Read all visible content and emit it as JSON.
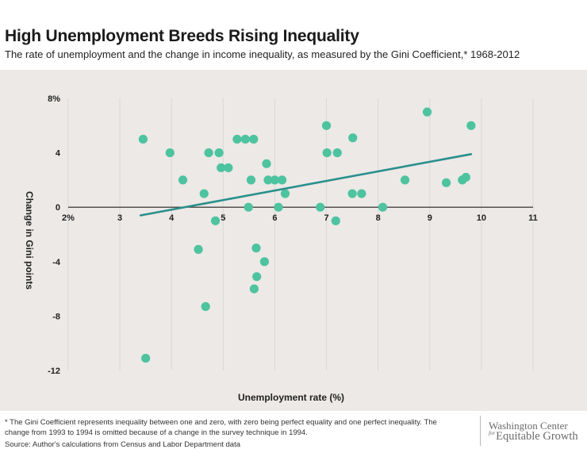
{
  "title": "High Unemployment Breeds Rising Inequality",
  "subtitle": "The rate of unemployment and the change in income inequality, as measured by the Gini Coefficient,* 1968-2012",
  "footnote": "* The Gini Coefficient represents inequality between one and zero, with zero being perfect equality and one perfect inequality. The change from 1993 to 1994 is omitted because of a change in the survey technique in 1994.",
  "source": "Source: Author's calculations from Census and Labor Department data",
  "brand": {
    "line1": "Washington Center",
    "for": "for",
    "line2": "Equitable Growth"
  },
  "colors": {
    "point": "#4dc39f",
    "trend": "#2a8f8c",
    "background": "#ece9e6",
    "grid": "#d9d9d9"
  },
  "chart_data": {
    "type": "scatter",
    "xlabel": "Unemployment rate (%)",
    "ylabel": "Change in Gini points",
    "xlim": [
      2,
      11
    ],
    "ylim": [
      -12,
      8
    ],
    "x_ticks": [
      2,
      3,
      4,
      5,
      6,
      7,
      8,
      9,
      10,
      11
    ],
    "x_tick_labels": [
      "2%",
      "3",
      "4",
      "5",
      "6",
      "7",
      "8",
      "9",
      "10",
      "11"
    ],
    "y_ticks": [
      8,
      4,
      0,
      -4,
      -8,
      -12
    ],
    "y_tick_labels": [
      "8%",
      "4",
      "0",
      "-4",
      "-8",
      "-12"
    ],
    "grid": "vertical",
    "trendline": {
      "x": [
        3.4,
        9.8
      ],
      "y": [
        -0.6,
        3.9
      ]
    },
    "points": [
      {
        "x": 3.45,
        "y": 5.0
      },
      {
        "x": 3.5,
        "y": -11.1
      },
      {
        "x": 3.97,
        "y": 4.0
      },
      {
        "x": 4.22,
        "y": 2.0
      },
      {
        "x": 4.52,
        "y": -3.1
      },
      {
        "x": 4.63,
        "y": 1.0
      },
      {
        "x": 4.66,
        "y": -7.3
      },
      {
        "x": 4.72,
        "y": 4.0
      },
      {
        "x": 4.85,
        "y": -1.0
      },
      {
        "x": 4.92,
        "y": 4.0
      },
      {
        "x": 4.96,
        "y": 2.9
      },
      {
        "x": 5.1,
        "y": 2.9
      },
      {
        "x": 5.27,
        "y": 5.0
      },
      {
        "x": 5.43,
        "y": 5.0
      },
      {
        "x": 5.49,
        "y": 0.0
      },
      {
        "x": 5.54,
        "y": 2.0
      },
      {
        "x": 5.59,
        "y": 5.0
      },
      {
        "x": 5.6,
        "y": -6.0
      },
      {
        "x": 5.64,
        "y": -3.0
      },
      {
        "x": 5.65,
        "y": -5.1
      },
      {
        "x": 5.8,
        "y": -4.0
      },
      {
        "x": 5.84,
        "y": 3.2
      },
      {
        "x": 5.87,
        "y": 2.0
      },
      {
        "x": 6.0,
        "y": 2.0
      },
      {
        "x": 6.07,
        "y": 0.0
      },
      {
        "x": 6.14,
        "y": 2.0
      },
      {
        "x": 6.2,
        "y": 1.0
      },
      {
        "x": 6.88,
        "y": 0.0
      },
      {
        "x": 7.0,
        "y": 6.0
      },
      {
        "x": 7.01,
        "y": 4.0
      },
      {
        "x": 7.18,
        "y": -1.0
      },
      {
        "x": 7.21,
        "y": 4.0
      },
      {
        "x": 7.5,
        "y": 1.0
      },
      {
        "x": 7.51,
        "y": 5.1
      },
      {
        "x": 7.68,
        "y": 1.0
      },
      {
        "x": 8.09,
        "y": 0.0
      },
      {
        "x": 8.52,
        "y": 2.0
      },
      {
        "x": 8.95,
        "y": 7.0
      },
      {
        "x": 9.32,
        "y": 1.8
      },
      {
        "x": 9.63,
        "y": 2.0
      },
      {
        "x": 9.7,
        "y": 2.2
      },
      {
        "x": 9.8,
        "y": 6.0
      }
    ]
  }
}
